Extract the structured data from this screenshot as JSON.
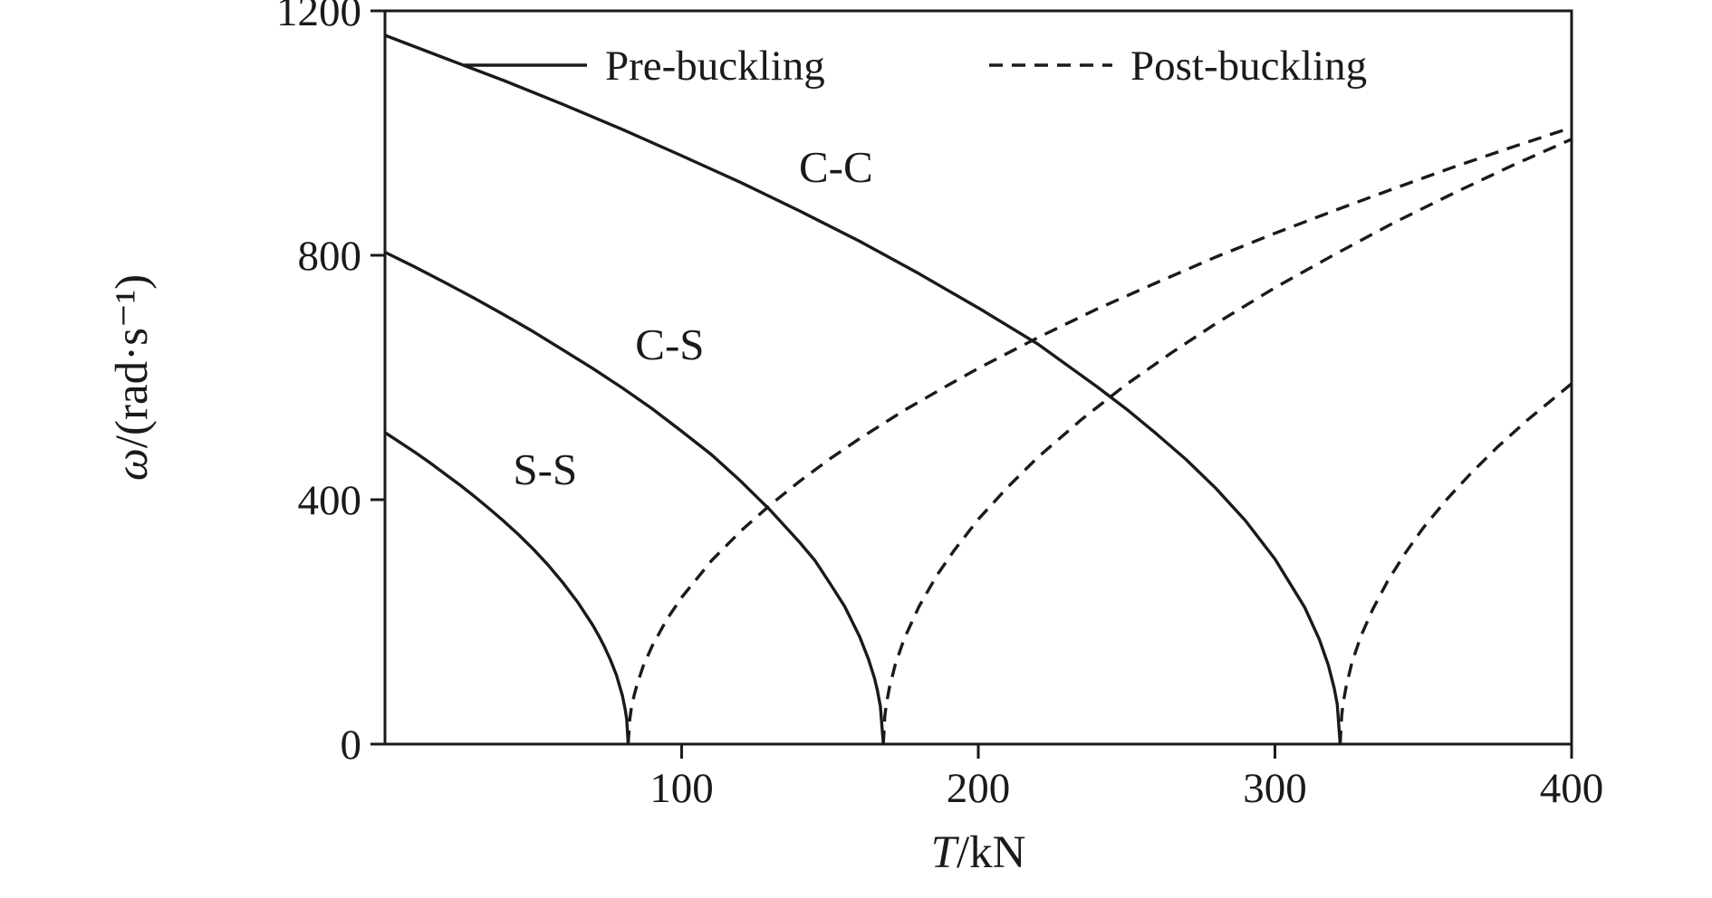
{
  "figure": {
    "background": "#ffffff",
    "line_color": "#1a1a1a"
  },
  "chart_data": {
    "type": "line",
    "title": "",
    "xlabel": "T/kN",
    "xlabel_symbol": "T",
    "xlabel_rest": "/kN",
    "ylabel": "ω/(rad·s⁻¹)",
    "ylabel_symbol": "ω",
    "ylabel_rest": "/(rad·s⁻¹)",
    "xlim": [
      0,
      400
    ],
    "ylim": [
      0,
      1200
    ],
    "x_ticks": [
      100,
      200,
      300,
      400
    ],
    "y_ticks": [
      0,
      400,
      800,
      1200
    ],
    "grid": false,
    "legend": {
      "position": "top-inside",
      "entries": [
        {
          "label": "Pre-buckling",
          "style": "solid"
        },
        {
          "label": "Post-buckling",
          "style": "dashed"
        }
      ]
    },
    "annotations": [
      {
        "label": "C-C",
        "x": 152,
        "y": 920
      },
      {
        "label": "C-S",
        "x": 96,
        "y": 630
      },
      {
        "label": "S-S",
        "x": 54,
        "y": 425
      }
    ],
    "critical_loads_kN": {
      "S-S": 82,
      "C-S": 168,
      "C-C": 322
    },
    "series": [
      {
        "id": "ss-pre",
        "name": "S-S pre-buckling",
        "boundary": "S-S",
        "phase": "pre-buckling",
        "style": "solid",
        "points": [
          [
            0,
            510
          ],
          [
            5,
            494
          ],
          [
            10,
            478
          ],
          [
            15,
            461
          ],
          [
            20,
            443
          ],
          [
            25,
            425
          ],
          [
            30,
            406
          ],
          [
            35,
            386
          ],
          [
            40,
            365
          ],
          [
            45,
            343
          ],
          [
            50,
            319
          ],
          [
            55,
            293
          ],
          [
            60,
            264
          ],
          [
            65,
            232
          ],
          [
            70,
            195
          ],
          [
            72,
            178
          ],
          [
            74,
            159
          ],
          [
            76,
            138
          ],
          [
            78,
            113
          ],
          [
            80,
            80
          ],
          [
            81,
            56
          ],
          [
            81.5,
            40
          ],
          [
            82,
            0
          ]
        ]
      },
      {
        "id": "ss-post",
        "name": "S-S post-buckling",
        "boundary": "S-S",
        "phase": "post-buckling",
        "style": "dashed",
        "points": [
          [
            82,
            0
          ],
          [
            82.5,
            40
          ],
          [
            83,
            57
          ],
          [
            84,
            80
          ],
          [
            85,
            98
          ],
          [
            87,
            127
          ],
          [
            90,
            160
          ],
          [
            95,
            204
          ],
          [
            100,
            240
          ],
          [
            110,
            300
          ],
          [
            120,
            349
          ],
          [
            130,
            392
          ],
          [
            140,
            431
          ],
          [
            150,
            467
          ],
          [
            160,
            500
          ],
          [
            175,
            546
          ],
          [
            190,
            588
          ],
          [
            200,
            615
          ],
          [
            220,
            665
          ],
          [
            240,
            712
          ],
          [
            260,
            755
          ],
          [
            280,
            797
          ],
          [
            300,
            836
          ],
          [
            320,
            873
          ],
          [
            340,
            909
          ],
          [
            360,
            944
          ],
          [
            380,
            977
          ],
          [
            400,
            1009
          ]
        ]
      },
      {
        "id": "cs-pre",
        "name": "C-S pre-buckling",
        "boundary": "C-S",
        "phase": "pre-buckling",
        "style": "solid",
        "points": [
          [
            0,
            805
          ],
          [
            10,
            781
          ],
          [
            20,
            756
          ],
          [
            30,
            730
          ],
          [
            40,
            703
          ],
          [
            50,
            675
          ],
          [
            60,
            645
          ],
          [
            70,
            615
          ],
          [
            80,
            583
          ],
          [
            90,
            549
          ],
          [
            100,
            512
          ],
          [
            110,
            474
          ],
          [
            120,
            430
          ],
          [
            130,
            382
          ],
          [
            140,
            329
          ],
          [
            145,
            300
          ],
          [
            150,
            263
          ],
          [
            155,
            225
          ],
          [
            160,
            176
          ],
          [
            163,
            139
          ],
          [
            165,
            108
          ],
          [
            166,
            88
          ],
          [
            167,
            62
          ],
          [
            168,
            0
          ]
        ]
      },
      {
        "id": "cs-post",
        "name": "C-S post-buckling",
        "boundary": "C-S",
        "phase": "post-buckling",
        "style": "dashed",
        "points": [
          [
            168,
            0
          ],
          [
            168.5,
            46
          ],
          [
            169,
            65
          ],
          [
            170,
            92
          ],
          [
            172,
            130
          ],
          [
            175,
            172
          ],
          [
            180,
            225
          ],
          [
            186,
            276
          ],
          [
            192,
            318
          ],
          [
            200,
            368
          ],
          [
            210,
            421
          ],
          [
            220,
            469
          ],
          [
            235,
            532
          ],
          [
            250,
            589
          ],
          [
            265,
            640
          ],
          [
            280,
            688
          ],
          [
            300,
            747
          ],
          [
            320,
            801
          ],
          [
            340,
            853
          ],
          [
            360,
            901
          ],
          [
            380,
            947
          ],
          [
            400,
            990
          ]
        ]
      },
      {
        "id": "cc-pre",
        "name": "C-C pre-buckling",
        "boundary": "C-C",
        "phase": "pre-buckling",
        "style": "solid",
        "points": [
          [
            0,
            1160
          ],
          [
            20,
            1123
          ],
          [
            40,
            1086
          ],
          [
            60,
            1047
          ],
          [
            80,
            1006
          ],
          [
            100,
            963
          ],
          [
            120,
            919
          ],
          [
            140,
            872
          ],
          [
            160,
            823
          ],
          [
            180,
            770
          ],
          [
            200,
            714
          ],
          [
            220,
            655
          ],
          [
            240,
            585
          ],
          [
            250,
            548
          ],
          [
            260,
            508
          ],
          [
            270,
            466
          ],
          [
            280,
            419
          ],
          [
            290,
            366
          ],
          [
            300,
            303
          ],
          [
            310,
            224
          ],
          [
            315,
            171
          ],
          [
            318,
            129
          ],
          [
            320,
            91
          ],
          [
            321,
            65
          ],
          [
            322,
            0
          ]
        ]
      },
      {
        "id": "cc-post",
        "name": "C-C post-buckling",
        "boundary": "C-C",
        "phase": "post-buckling",
        "style": "dashed",
        "points": [
          [
            322,
            0
          ],
          [
            322.5,
            47
          ],
          [
            323,
            67
          ],
          [
            324,
            94
          ],
          [
            326,
            134
          ],
          [
            329,
            177
          ],
          [
            333,
            221
          ],
          [
            338,
            267
          ],
          [
            344,
            313
          ],
          [
            350,
            354
          ],
          [
            358,
            401
          ],
          [
            366,
            443
          ],
          [
            375,
            486
          ],
          [
            385,
            530
          ],
          [
            400,
            590
          ]
        ]
      }
    ]
  }
}
